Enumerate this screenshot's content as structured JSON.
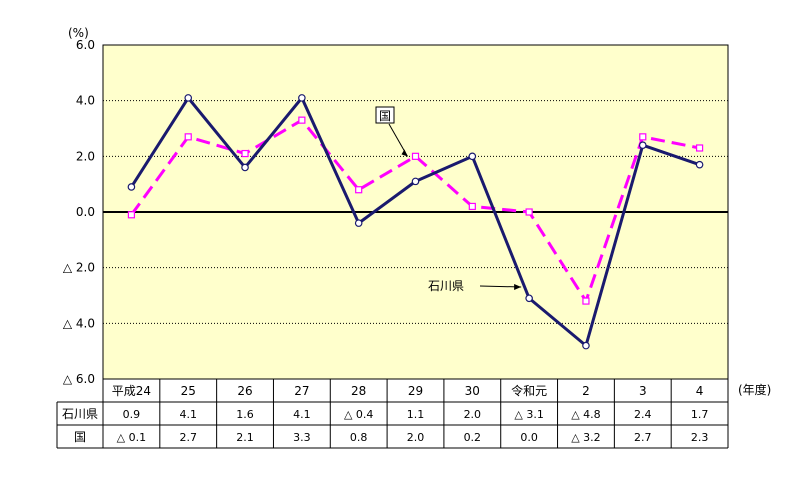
{
  "chart_data": {
    "type": "line",
    "unit_label": "(%)",
    "x_unit_label": "(年度)",
    "categories": [
      "平成24",
      "25",
      "26",
      "27",
      "28",
      "29",
      "30",
      "令和元",
      "2",
      "3",
      "4"
    ],
    "series": [
      {
        "name": "石川県",
        "values": [
          0.9,
          4.1,
          1.6,
          4.1,
          -0.4,
          1.1,
          2.0,
          -3.1,
          -4.8,
          2.4,
          1.7
        ],
        "display": [
          "0.9",
          "4.1",
          "1.6",
          "4.1",
          "△ 0.4",
          "1.1",
          "2.0",
          "△ 3.1",
          "△ 4.8",
          "2.4",
          "1.7"
        ],
        "color": "#1a1a6e",
        "style": "solid"
      },
      {
        "name": "国",
        "values": [
          -0.1,
          2.7,
          2.1,
          3.3,
          0.8,
          2.0,
          0.2,
          0.0,
          -3.2,
          2.7,
          2.3
        ],
        "display": [
          "△ 0.1",
          "2.7",
          "2.1",
          "3.3",
          "0.8",
          "2.0",
          "0.2",
          "0.0",
          "△ 3.2",
          "2.7",
          "2.3"
        ],
        "color": "#ff00ff",
        "style": "dashed"
      }
    ],
    "ylim": [
      -6.0,
      6.0
    ],
    "yticks": [
      6.0,
      4.0,
      2.0,
      0.0,
      -2.0,
      -4.0,
      -6.0
    ],
    "ytick_labels": [
      "6.0",
      "4.0",
      "2.0",
      "0.0",
      "△ 2.0",
      "△ 4.0",
      "△ 6.0"
    ],
    "plot_background": "#ffffcc",
    "grid": "horizontal dotted",
    "annotations": [
      {
        "text": "国",
        "series": "国",
        "index": 5
      },
      {
        "text": "石川県",
        "series": "石川県",
        "index": 7
      }
    ]
  }
}
